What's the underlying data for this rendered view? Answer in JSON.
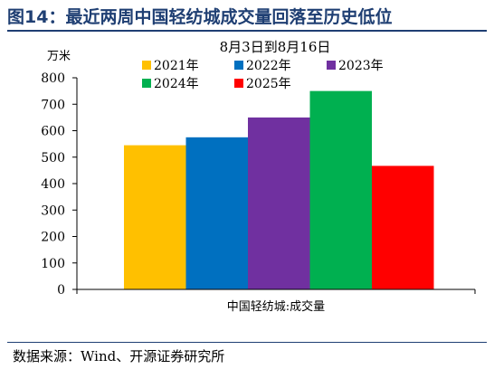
{
  "figure": {
    "title": "图14：最近两周中国轻纺城成交量回落至历史低位",
    "source": "数据来源：Wind、开源证券研究所"
  },
  "chart_data": {
    "type": "bar",
    "title": "8月3日到8月16日",
    "ylabel": "万米",
    "xlabel": "中国轻纺城:成交量",
    "ylim": [
      0,
      800
    ],
    "yticks": [
      0,
      100,
      200,
      300,
      400,
      500,
      600,
      700,
      800
    ],
    "grid": false,
    "legend": "top",
    "series": [
      {
        "name": "2021年",
        "value": 545,
        "color": "#ffc000"
      },
      {
        "name": "2022年",
        "value": 575,
        "color": "#0070c0"
      },
      {
        "name": "2023年",
        "value": 650,
        "color": "#7030a0"
      },
      {
        "name": "2024年",
        "value": 750,
        "color": "#00b050"
      },
      {
        "name": "2025年",
        "value": 467,
        "color": "#ff0000"
      }
    ]
  }
}
